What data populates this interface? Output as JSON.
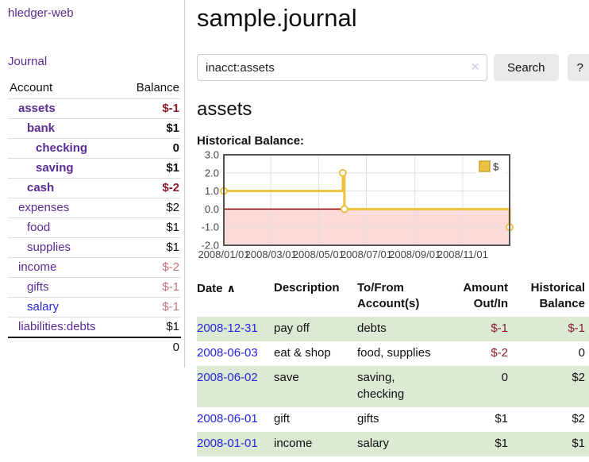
{
  "app": {
    "brand": "hledger-web",
    "nav_journal": "Journal"
  },
  "sidebar": {
    "header": {
      "account": "Account",
      "balance": "Balance"
    },
    "accounts": [
      {
        "name": "assets",
        "indent": 1,
        "bold": true,
        "link_color": "purple",
        "balance": "$-1",
        "balance_class": "neg-strong"
      },
      {
        "name": "bank",
        "indent": 2,
        "bold": true,
        "link_color": "purple",
        "balance": "$1",
        "balance_class": ""
      },
      {
        "name": "checking",
        "indent": 3,
        "bold": true,
        "link_color": "purple",
        "balance": "0",
        "balance_class": ""
      },
      {
        "name": "saving",
        "indent": 3,
        "bold": true,
        "link_color": "purple",
        "balance": "$1",
        "balance_class": ""
      },
      {
        "name": "cash",
        "indent": 2,
        "bold": true,
        "link_color": "purple",
        "balance": "$-2",
        "balance_class": "neg-strong"
      },
      {
        "name": "expenses",
        "indent": 1,
        "bold": false,
        "link_color": "purple",
        "balance": "$2",
        "balance_class": ""
      },
      {
        "name": "food",
        "indent": 2,
        "bold": false,
        "link_color": "purple",
        "balance": "$1",
        "balance_class": ""
      },
      {
        "name": "supplies",
        "indent": 2,
        "bold": false,
        "link_color": "purple",
        "balance": "$1",
        "balance_class": ""
      },
      {
        "name": "income",
        "indent": 1,
        "bold": false,
        "link_color": "purple",
        "balance": "$-2",
        "balance_class": "neg-soft"
      },
      {
        "name": "gifts",
        "indent": 2,
        "bold": false,
        "link_color": "purple",
        "balance": "$-1",
        "balance_class": "neg-soft"
      },
      {
        "name": "salary",
        "indent": 2,
        "bold": false,
        "link_color": "blue",
        "balance": "$-1",
        "balance_class": "neg-soft"
      },
      {
        "name": "liabilities:debts",
        "indent": 1,
        "bold": false,
        "link_color": "purple",
        "balance": "$1",
        "balance_class": ""
      }
    ],
    "total": "0"
  },
  "main": {
    "title": "sample.journal",
    "search": {
      "value": "inacct:assets",
      "clear_icon": "✕",
      "button": "Search",
      "help": "?"
    },
    "account_heading": "assets",
    "chart_heading": "Historical Balance:"
  },
  "chart_data": {
    "type": "line",
    "title": "Historical Balance",
    "step": true,
    "legend": {
      "label": "$",
      "position": "top-right"
    },
    "x_start": "2008-01-01",
    "x_end": "2008-12-31",
    "points": [
      {
        "date": "2008-01-01",
        "value": 1
      },
      {
        "date": "2008-06-01",
        "value": 2
      },
      {
        "date": "2008-06-03",
        "value": 0
      },
      {
        "date": "2008-12-31",
        "value": -1
      }
    ],
    "ylim": [
      -2,
      3
    ],
    "yticks": [
      3,
      2,
      1,
      0,
      -1,
      -2
    ],
    "xticks": [
      {
        "date": "2008-01-01",
        "label": "2008/01/01"
      },
      {
        "date": "2008-03-01",
        "label": "2008/03/01"
      },
      {
        "date": "2008-05-01",
        "label": "2008/05/01"
      },
      {
        "date": "2008-07-01",
        "label": "2008/07/01"
      },
      {
        "date": "2008-09-01",
        "label": "2008/09/01"
      },
      {
        "date": "2008-11-01",
        "label": "2008/11/01"
      }
    ],
    "grid": true,
    "negative_region_shaded": true
  },
  "register": {
    "sort_icon": "∧",
    "headers": {
      "date": "Date",
      "description": "Description",
      "account": "To/From Account(s)",
      "amount": "Amount Out/In",
      "balance": "Historical Balance"
    },
    "rows": [
      {
        "date": "2008-12-31",
        "description": "pay off",
        "accounts": "debts",
        "amount": "$-1",
        "amount_negative": true,
        "balance": "$-1",
        "balance_negative": true
      },
      {
        "date": "2008-06-03",
        "description": "eat & shop",
        "accounts": "food, supplies",
        "amount": "$-2",
        "amount_negative": true,
        "balance": "0",
        "balance_negative": false
      },
      {
        "date": "2008-06-02",
        "description": "save",
        "accounts": "saving, checking",
        "amount": "0",
        "amount_negative": false,
        "balance": "$2",
        "balance_negative": false
      },
      {
        "date": "2008-06-01",
        "description": "gift",
        "accounts": "gifts",
        "amount": "$1",
        "amount_negative": false,
        "balance": "$2",
        "balance_negative": false
      },
      {
        "date": "2008-01-01",
        "description": "income",
        "accounts": "salary",
        "amount": "$1",
        "amount_negative": false,
        "balance": "$1",
        "balance_negative": false
      }
    ]
  },
  "colors": {
    "purple": "#5b2c91",
    "blue": "#2626e0",
    "neg_strong": "#8c1c27",
    "neg_soft": "#c4737e",
    "row_green": "#dcead3",
    "row_border": "#dddddd",
    "divider": "#cccccc",
    "btn_bg": "#e9e9e9",
    "input_border": "#cccccc",
    "clear_icon": "#d6cde4",
    "chart_gold": "#edc240",
    "chart_gold_border": "#c9a32c",
    "chart_pink": "#fbdada",
    "chart_zero": "#8b0000",
    "chart_border": "#545454",
    "chart_grid": "#e0e0e0",
    "tick_label": "#444444"
  }
}
